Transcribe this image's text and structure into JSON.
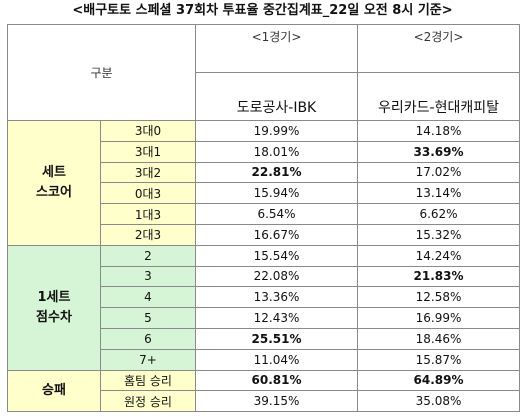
{
  "title": "<배구토토 스페셜 37회차 투표율 중간집계표_22일 오전 8시 기준>",
  "header": {
    "gubun": "구분",
    "match1_num": "<1경기>",
    "match1_name": "도로공사-IBK",
    "match2_num": "<2경기>",
    "match2_name": "우리카드-현대캐피탈"
  },
  "groups": [
    {
      "label_line1": "세트",
      "label_line2": "스코어",
      "color": "#ffffcc",
      "rows": [
        {
          "label": "3대0",
          "v1": "19.99%",
          "v2": "14.18%",
          "b1": false,
          "b2": false
        },
        {
          "label": "3대1",
          "v1": "18.01%",
          "v2": "33.69%",
          "b1": false,
          "b2": true
        },
        {
          "label": "3대2",
          "v1": "22.81%",
          "v2": "17.02%",
          "b1": true,
          "b2": false
        },
        {
          "label": "0대3",
          "v1": "15.94%",
          "v2": "13.14%",
          "b1": false,
          "b2": false
        },
        {
          "label": "1대3",
          "v1": "6.54%",
          "v2": "6.62%",
          "b1": false,
          "b2": false
        },
        {
          "label": "2대3",
          "v1": "16.67%",
          "v2": "15.32%",
          "b1": false,
          "b2": false
        }
      ]
    },
    {
      "label_line1": "1세트",
      "label_line2": "점수차",
      "color": "#d6f5d6",
      "rows": [
        {
          "label": "2",
          "v1": "15.54%",
          "v2": "14.24%",
          "b1": false,
          "b2": false
        },
        {
          "label": "3",
          "v1": "22.08%",
          "v2": "21.83%",
          "b1": false,
          "b2": true
        },
        {
          "label": "4",
          "v1": "13.36%",
          "v2": "12.58%",
          "b1": false,
          "b2": false
        },
        {
          "label": "5",
          "v1": "12.43%",
          "v2": "16.99%",
          "b1": false,
          "b2": false
        },
        {
          "label": "6",
          "v1": "25.51%",
          "v2": "18.46%",
          "b1": true,
          "b2": false
        },
        {
          "label": "7+",
          "v1": "11.04%",
          "v2": "15.87%",
          "b1": false,
          "b2": false
        }
      ]
    },
    {
      "label_line1": "승패",
      "label_line2": "",
      "color": "#ffffcc",
      "rows": [
        {
          "label": "홈팀 승리",
          "v1": "60.81%",
          "v2": "64.89%",
          "b1": true,
          "b2": true
        },
        {
          "label": "원정 승리",
          "v1": "39.15%",
          "v2": "35.08%",
          "b1": false,
          "b2": false
        }
      ]
    }
  ]
}
